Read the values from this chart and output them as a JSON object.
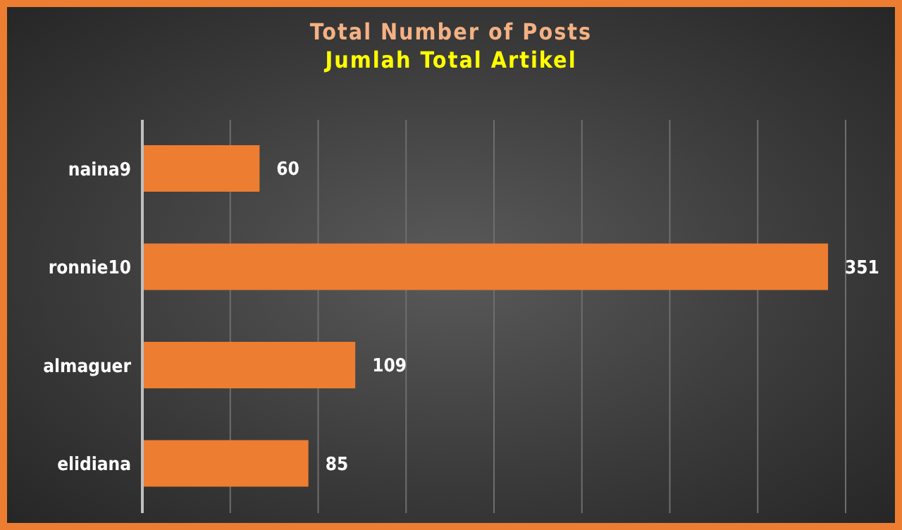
{
  "chart_data": {
    "type": "bar",
    "orientation": "horizontal",
    "title": "Total Number of Posts",
    "subtitle": "Jumlah Total Artikel",
    "categories": [
      "naina9",
      "ronnie10",
      "almaguer",
      "elidiana"
    ],
    "values": [
      60,
      351,
      109,
      85
    ],
    "color": "#ed7d31",
    "grid": "x",
    "data_labels": true,
    "tick_labels": "y"
  }
}
